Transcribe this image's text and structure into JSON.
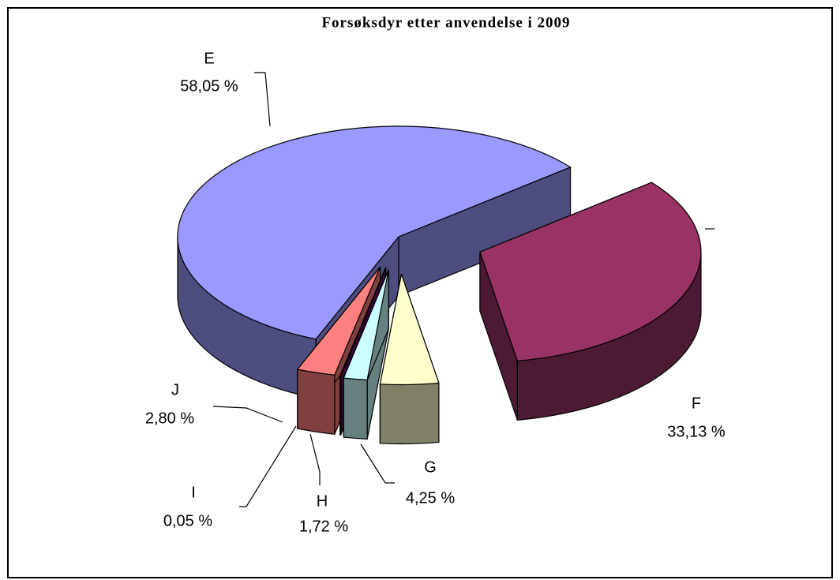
{
  "chart_data": {
    "type": "pie",
    "title": "Forsøksdyr etter anvendelse i 2009",
    "categories": [
      "E",
      "F",
      "G",
      "H",
      "I",
      "J"
    ],
    "values": [
      58.05,
      33.13,
      4.25,
      1.72,
      0.05,
      2.8
    ],
    "value_labels": [
      "58,05 %",
      "33,13 %",
      "4,25 %",
      "1,72 %",
      "0,05 %",
      "2,80 %"
    ],
    "colors": [
      "#9999ff",
      "#993366",
      "#ffffcc",
      "#ccffff",
      "#660066",
      "#ff8080"
    ],
    "three_d": true
  }
}
